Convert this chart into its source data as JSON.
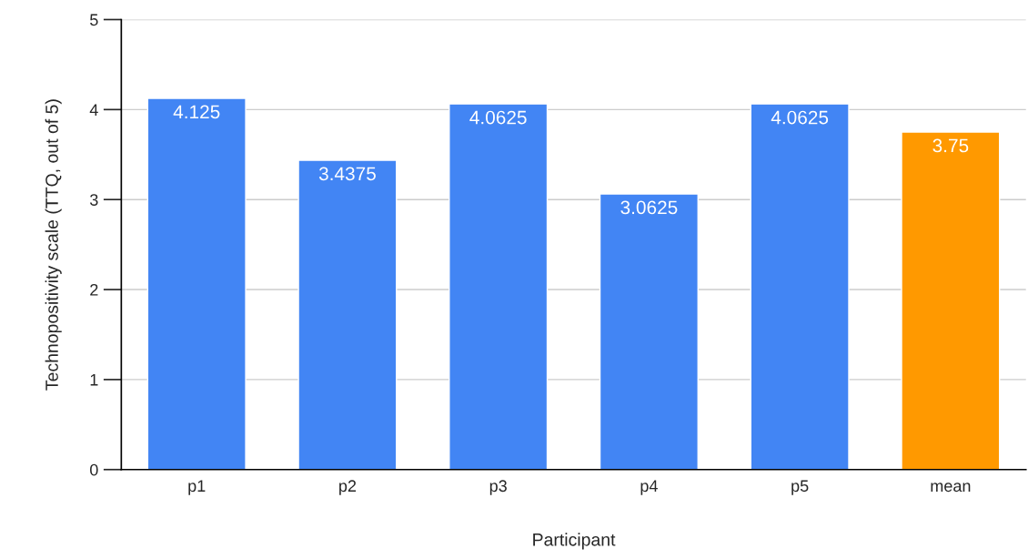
{
  "chart_data": {
    "type": "bar",
    "xlabel": "Participant",
    "ylabel": "Technopositivity scale (TTQ, out of 5)",
    "categories": [
      "p1",
      "p2",
      "p3",
      "p4",
      "p5",
      "mean"
    ],
    "values": [
      4.125,
      3.4375,
      4.0625,
      3.0625,
      4.0625,
      3.75
    ],
    "colors": [
      "#4285f4",
      "#4285f4",
      "#4285f4",
      "#4285f4",
      "#4285f4",
      "#ff9900"
    ],
    "ylim": [
      0,
      5
    ],
    "yticks": [
      0,
      1,
      2,
      3,
      4,
      5
    ],
    "grid": "y",
    "data_labels": true
  }
}
